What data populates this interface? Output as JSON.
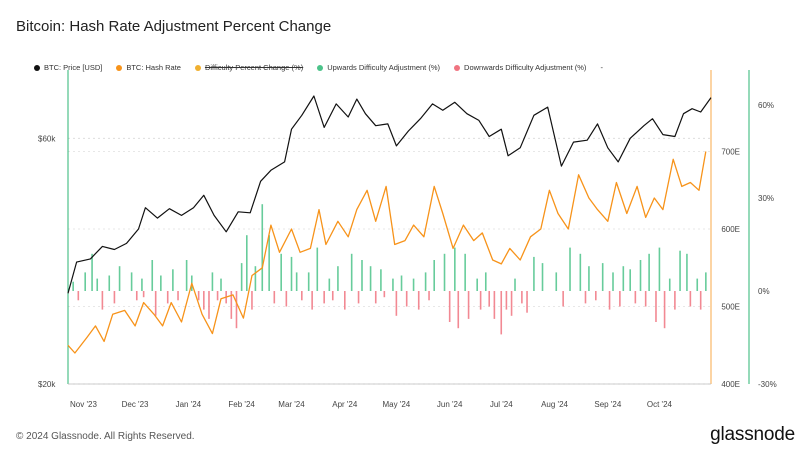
{
  "page": {
    "title": "Bitcoin: Hash Rate Adjustment Percent Change",
    "copyright": "© 2024 Glassnode. All Rights Reserved.",
    "brand": "glassnode"
  },
  "legend": [
    {
      "label": "BTC: Price [USD]",
      "color": "#111111",
      "struck": false
    },
    {
      "label": "BTC: Hash Rate",
      "color": "#f7931a",
      "struck": false
    },
    {
      "label": "Difficulty Percent Change (%)",
      "color": "#f0b030",
      "struck": true
    },
    {
      "label": "Upwards Difficulty Adjustment (%)",
      "color": "#4cc38a",
      "struck": false
    },
    {
      "label": "Downwards Difficulty Adjustment (%)",
      "color": "#f07480",
      "struck": false
    }
  ],
  "legend_extra": "-",
  "chart_data": {
    "type": "line",
    "title": "Bitcoin: Hash Rate Adjustment Percent Change",
    "x_start": "2023-10-23",
    "x_end": "2024-10-31",
    "x_ticks": [
      {
        "label": "Nov '23",
        "date": "2023-11-01"
      },
      {
        "label": "Dec '23",
        "date": "2023-12-01"
      },
      {
        "label": "Jan '24",
        "date": "2024-01-01"
      },
      {
        "label": "Feb '24",
        "date": "2024-02-01"
      },
      {
        "label": "Mar '24",
        "date": "2024-03-01"
      },
      {
        "label": "Apr '24",
        "date": "2024-04-01"
      },
      {
        "label": "May '24",
        "date": "2024-05-01"
      },
      {
        "label": "Jun '24",
        "date": "2024-06-01"
      },
      {
        "label": "Jul '24",
        "date": "2024-07-01"
      },
      {
        "label": "Aug '24",
        "date": "2024-08-01"
      },
      {
        "label": "Sep '24",
        "date": "2024-09-01"
      },
      {
        "label": "Oct '24",
        "date": "2024-10-01"
      }
    ],
    "axes": {
      "price": {
        "scale": "log",
        "range": [
          20000,
          80000
        ],
        "ticks": [
          {
            "label": "$20k",
            "value": 20000
          },
          {
            "label": "$60k",
            "value": 60000
          }
        ],
        "grid": true
      },
      "hash_rate": {
        "range": [
          400,
          800
        ],
        "ticks": [
          {
            "label": "400E",
            "value": 400
          },
          {
            "label": "500E",
            "value": 500
          },
          {
            "label": "600E",
            "value": 600
          },
          {
            "label": "700E",
            "value": 700
          }
        ]
      },
      "difficulty": {
        "range": [
          -30,
          70
        ],
        "ticks": [
          {
            "label": "-30%",
            "value": -30
          },
          {
            "label": "0%",
            "value": 0
          },
          {
            "label": "30%",
            "value": 30
          },
          {
            "label": "60%",
            "value": 60
          }
        ]
      }
    },
    "series": [
      {
        "name": "BTC: Price [USD]",
        "color": "#111111",
        "points": [
          [
            "2023-10-23",
            30000
          ],
          [
            "2023-10-28",
            34500
          ],
          [
            "2023-11-05",
            35000
          ],
          [
            "2023-11-12",
            37000
          ],
          [
            "2023-11-19",
            36500
          ],
          [
            "2023-11-26",
            37500
          ],
          [
            "2023-12-03",
            40000
          ],
          [
            "2023-12-07",
            44000
          ],
          [
            "2023-12-14",
            42000
          ],
          [
            "2023-12-21",
            43800
          ],
          [
            "2023-12-28",
            42500
          ],
          [
            "2024-01-04",
            44000
          ],
          [
            "2024-01-10",
            46500
          ],
          [
            "2024-01-16",
            42500
          ],
          [
            "2024-01-23",
            39500
          ],
          [
            "2024-01-30",
            43200
          ],
          [
            "2024-02-06",
            43000
          ],
          [
            "2024-02-12",
            49500
          ],
          [
            "2024-02-18",
            52000
          ],
          [
            "2024-02-26",
            54000
          ],
          [
            "2024-03-01",
            62500
          ],
          [
            "2024-03-07",
            66500
          ],
          [
            "2024-03-14",
            72500
          ],
          [
            "2024-03-20",
            63000
          ],
          [
            "2024-03-27",
            70000
          ],
          [
            "2024-04-03",
            66000
          ],
          [
            "2024-04-08",
            71500
          ],
          [
            "2024-04-13",
            67000
          ],
          [
            "2024-04-19",
            63500
          ],
          [
            "2024-04-26",
            64000
          ],
          [
            "2024-05-01",
            58000
          ],
          [
            "2024-05-08",
            62000
          ],
          [
            "2024-05-15",
            65500
          ],
          [
            "2024-05-22",
            70000
          ],
          [
            "2024-05-28",
            68000
          ],
          [
            "2024-06-04",
            70500
          ],
          [
            "2024-06-11",
            67000
          ],
          [
            "2024-06-18",
            65000
          ],
          [
            "2024-06-24",
            60500
          ],
          [
            "2024-07-01",
            62500
          ],
          [
            "2024-07-05",
            55500
          ],
          [
            "2024-07-12",
            57500
          ],
          [
            "2024-07-20",
            66500
          ],
          [
            "2024-07-28",
            69000
          ],
          [
            "2024-08-05",
            53000
          ],
          [
            "2024-08-12",
            59000
          ],
          [
            "2024-08-20",
            59500
          ],
          [
            "2024-08-26",
            64000
          ],
          [
            "2024-09-01",
            57500
          ],
          [
            "2024-09-07",
            54000
          ],
          [
            "2024-09-14",
            60000
          ],
          [
            "2024-09-22",
            63500
          ],
          [
            "2024-09-27",
            65500
          ],
          [
            "2024-10-03",
            61000
          ],
          [
            "2024-10-10",
            60500
          ],
          [
            "2024-10-15",
            67000
          ],
          [
            "2024-10-20",
            68500
          ],
          [
            "2024-10-25",
            67500
          ],
          [
            "2024-10-31",
            72000
          ]
        ]
      },
      {
        "name": "BTC: Hash Rate",
        "color": "#f7931a",
        "points": [
          [
            "2023-10-23",
            450
          ],
          [
            "2023-10-27",
            440
          ],
          [
            "2023-11-03",
            460
          ],
          [
            "2023-11-08",
            475
          ],
          [
            "2023-11-13",
            455
          ],
          [
            "2023-11-18",
            490
          ],
          [
            "2023-11-25",
            495
          ],
          [
            "2023-12-01",
            475
          ],
          [
            "2023-12-06",
            505
          ],
          [
            "2023-12-12",
            490
          ],
          [
            "2023-12-17",
            475
          ],
          [
            "2023-12-22",
            505
          ],
          [
            "2023-12-28",
            480
          ],
          [
            "2024-01-03",
            530
          ],
          [
            "2024-01-09",
            490
          ],
          [
            "2024-01-15",
            465
          ],
          [
            "2024-01-20",
            510
          ],
          [
            "2024-01-27",
            515
          ],
          [
            "2024-02-02",
            485
          ],
          [
            "2024-02-07",
            540
          ],
          [
            "2024-02-13",
            550
          ],
          [
            "2024-02-18",
            605
          ],
          [
            "2024-02-23",
            570
          ],
          [
            "2024-03-01",
            600
          ],
          [
            "2024-03-06",
            570
          ],
          [
            "2024-03-12",
            575
          ],
          [
            "2024-03-17",
            625
          ],
          [
            "2024-03-21",
            580
          ],
          [
            "2024-03-28",
            610
          ],
          [
            "2024-04-03",
            590
          ],
          [
            "2024-04-08",
            625
          ],
          [
            "2024-04-14",
            650
          ],
          [
            "2024-04-19",
            610
          ],
          [
            "2024-04-25",
            655
          ],
          [
            "2024-04-30",
            580
          ],
          [
            "2024-05-06",
            585
          ],
          [
            "2024-05-11",
            605
          ],
          [
            "2024-05-17",
            590
          ],
          [
            "2024-05-23",
            655
          ],
          [
            "2024-05-28",
            620
          ],
          [
            "2024-06-03",
            575
          ],
          [
            "2024-06-09",
            605
          ],
          [
            "2024-06-15",
            585
          ],
          [
            "2024-06-20",
            595
          ],
          [
            "2024-06-26",
            560
          ],
          [
            "2024-07-01",
            555
          ],
          [
            "2024-07-06",
            575
          ],
          [
            "2024-07-12",
            560
          ],
          [
            "2024-07-18",
            590
          ],
          [
            "2024-07-24",
            600
          ],
          [
            "2024-07-29",
            650
          ],
          [
            "2024-08-03",
            620
          ],
          [
            "2024-08-09",
            600
          ],
          [
            "2024-08-15",
            670
          ],
          [
            "2024-08-21",
            640
          ],
          [
            "2024-08-26",
            625
          ],
          [
            "2024-09-01",
            610
          ],
          [
            "2024-09-06",
            660
          ],
          [
            "2024-09-12",
            620
          ],
          [
            "2024-09-18",
            655
          ],
          [
            "2024-09-23",
            615
          ],
          [
            "2024-09-28",
            640
          ],
          [
            "2024-10-03",
            625
          ],
          [
            "2024-10-09",
            690
          ],
          [
            "2024-10-14",
            655
          ],
          [
            "2024-10-19",
            660
          ],
          [
            "2024-10-24",
            650
          ],
          [
            "2024-10-28",
            700
          ]
        ]
      },
      {
        "name": "Upwards Difficulty Adjustment (%)",
        "color": "#4cc38a",
        "bars": [
          [
            "2023-10-26",
            3
          ],
          [
            "2023-11-02",
            6
          ],
          [
            "2023-11-06",
            12
          ],
          [
            "2023-11-09",
            4
          ],
          [
            "2023-11-16",
            5
          ],
          [
            "2023-11-22",
            8
          ],
          [
            "2023-11-29",
            6
          ],
          [
            "2023-12-05",
            4
          ],
          [
            "2023-12-11",
            10
          ],
          [
            "2023-12-16",
            5
          ],
          [
            "2023-12-23",
            7
          ],
          [
            "2023-12-31",
            10
          ],
          [
            "2024-01-03",
            5
          ],
          [
            "2024-01-15",
            6
          ],
          [
            "2024-01-20",
            4
          ],
          [
            "2024-02-01",
            9
          ],
          [
            "2024-02-04",
            18
          ],
          [
            "2024-02-09",
            8
          ],
          [
            "2024-02-13",
            28
          ],
          [
            "2024-02-17",
            18
          ],
          [
            "2024-02-24",
            12
          ],
          [
            "2024-03-01",
            11
          ],
          [
            "2024-03-04",
            6
          ],
          [
            "2024-03-11",
            6
          ],
          [
            "2024-03-16",
            14
          ],
          [
            "2024-03-23",
            4
          ],
          [
            "2024-03-28",
            8
          ],
          [
            "2024-04-05",
            12
          ],
          [
            "2024-04-11",
            10
          ],
          [
            "2024-04-16",
            8
          ],
          [
            "2024-04-22",
            7
          ],
          [
            "2024-04-29",
            4
          ],
          [
            "2024-05-04",
            5
          ],
          [
            "2024-05-11",
            4
          ],
          [
            "2024-05-18",
            6
          ],
          [
            "2024-05-23",
            10
          ],
          [
            "2024-05-29",
            12
          ],
          [
            "2024-06-04",
            14
          ],
          [
            "2024-06-10",
            12
          ],
          [
            "2024-06-17",
            4
          ],
          [
            "2024-06-22",
            6
          ],
          [
            "2024-07-09",
            4
          ],
          [
            "2024-07-20",
            11
          ],
          [
            "2024-07-25",
            9
          ],
          [
            "2024-08-02",
            6
          ],
          [
            "2024-08-10",
            14
          ],
          [
            "2024-08-16",
            12
          ],
          [
            "2024-08-21",
            8
          ],
          [
            "2024-08-29",
            9
          ],
          [
            "2024-09-04",
            6
          ],
          [
            "2024-09-10",
            8
          ],
          [
            "2024-09-14",
            7
          ],
          [
            "2024-09-20",
            10
          ],
          [
            "2024-09-25",
            12
          ],
          [
            "2024-10-01",
            14
          ],
          [
            "2024-10-07",
            4
          ],
          [
            "2024-10-13",
            13
          ],
          [
            "2024-10-17",
            12
          ],
          [
            "2024-10-23",
            4
          ],
          [
            "2024-10-28",
            6
          ]
        ]
      },
      {
        "name": "Downwards Difficulty Adjustment (%)",
        "color": "#f07480",
        "bars": [
          [
            "2023-10-29",
            -3
          ],
          [
            "2023-11-12",
            -6
          ],
          [
            "2023-11-19",
            -4
          ],
          [
            "2023-12-02",
            -3
          ],
          [
            "2023-12-06",
            -2
          ],
          [
            "2023-12-13",
            -8
          ],
          [
            "2023-12-20",
            -4
          ],
          [
            "2023-12-26",
            -3
          ],
          [
            "2024-01-07",
            -3
          ],
          [
            "2024-01-10",
            -6
          ],
          [
            "2024-01-13",
            -9
          ],
          [
            "2024-01-18",
            -3
          ],
          [
            "2024-01-23",
            -4
          ],
          [
            "2024-01-26",
            -9
          ],
          [
            "2024-01-29",
            -12
          ],
          [
            "2024-02-07",
            -6
          ],
          [
            "2024-02-20",
            -4
          ],
          [
            "2024-02-27",
            -5
          ],
          [
            "2024-03-07",
            -3
          ],
          [
            "2024-03-13",
            -6
          ],
          [
            "2024-03-20",
            -4
          ],
          [
            "2024-03-25",
            -3
          ],
          [
            "2024-04-01",
            -6
          ],
          [
            "2024-04-09",
            -4
          ],
          [
            "2024-04-19",
            -4
          ],
          [
            "2024-04-24",
            -2
          ],
          [
            "2024-05-01",
            -8
          ],
          [
            "2024-05-07",
            -5
          ],
          [
            "2024-05-14",
            -6
          ],
          [
            "2024-05-20",
            -3
          ],
          [
            "2024-06-01",
            -10
          ],
          [
            "2024-06-06",
            -12
          ],
          [
            "2024-06-12",
            -9
          ],
          [
            "2024-06-19",
            -6
          ],
          [
            "2024-06-24",
            -5
          ],
          [
            "2024-06-27",
            -9
          ],
          [
            "2024-07-01",
            -14
          ],
          [
            "2024-07-04",
            -6
          ],
          [
            "2024-07-07",
            -8
          ],
          [
            "2024-07-13",
            -4
          ],
          [
            "2024-07-16",
            -7
          ],
          [
            "2024-08-06",
            -5
          ],
          [
            "2024-08-19",
            -4
          ],
          [
            "2024-08-25",
            -3
          ],
          [
            "2024-09-02",
            -6
          ],
          [
            "2024-09-08",
            -5
          ],
          [
            "2024-09-17",
            -4
          ],
          [
            "2024-09-23",
            -5
          ],
          [
            "2024-09-29",
            -10
          ],
          [
            "2024-10-04",
            -12
          ],
          [
            "2024-10-10",
            -6
          ],
          [
            "2024-10-19",
            -5
          ],
          [
            "2024-10-25",
            -6
          ]
        ]
      }
    ]
  }
}
